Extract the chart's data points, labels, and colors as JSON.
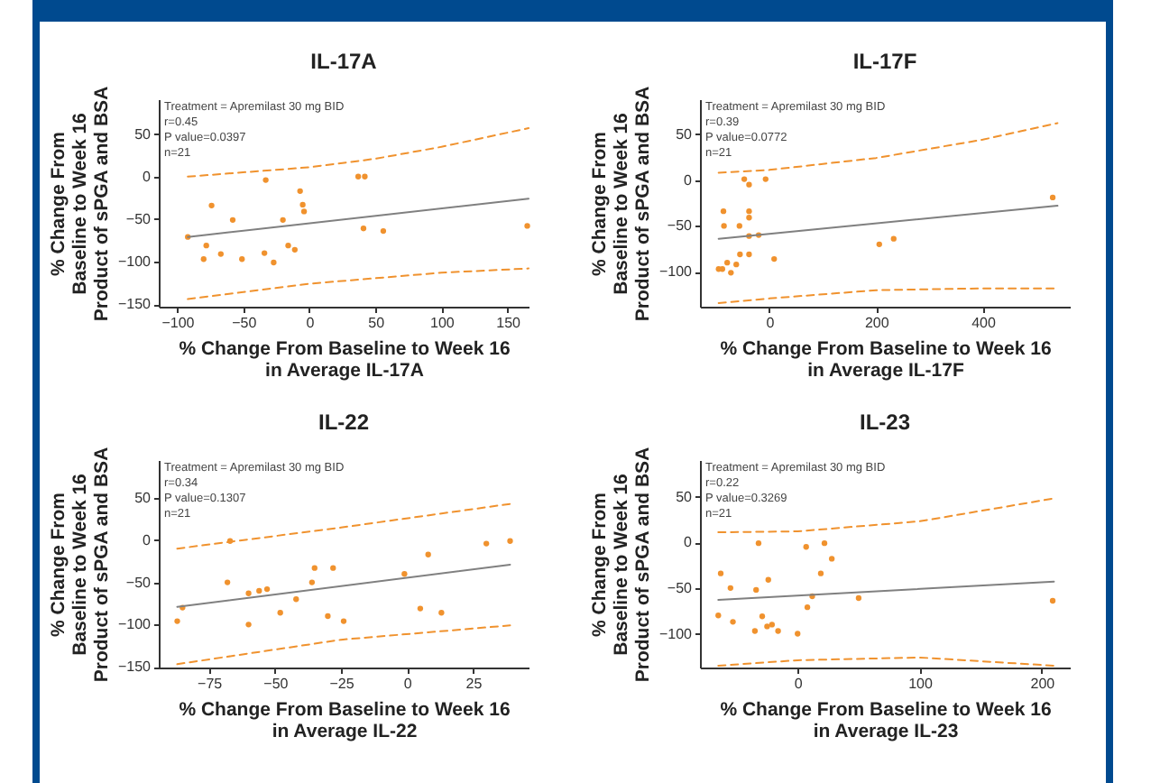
{
  "chart_data": [
    {
      "type": "scatter",
      "title": "IL-17A",
      "xlabel": "% Change From Baseline to Week 16\nin Average IL-17A",
      "ylabel": "% Change From\nBaseline to Week 16\nProduct of sPGA and BSA",
      "xlim": [
        -114,
        166
      ],
      "ylim": [
        -153,
        91
      ],
      "xticks": [
        -100,
        -50,
        0,
        50,
        100,
        150
      ],
      "yticks": [
        -150,
        -100,
        -50,
        0,
        50
      ],
      "annotations": [
        "Treatment = Apremilast 30 mg BID",
        "r=0.45",
        "P value=0.0397",
        "n=21"
      ],
      "series": [
        {
          "color": "#f0922e",
          "marker": "circle",
          "x": [
            -92,
            -74,
            -78,
            -80,
            -67,
            -58,
            -51,
            -33,
            -34,
            -27,
            -20,
            -16,
            -11,
            -7,
            -5,
            -4,
            37,
            42,
            41,
            56,
            165
          ],
          "values": [
            -71,
            -34,
            -81,
            -97,
            -91,
            -51,
            -97,
            -4,
            -90,
            -101,
            -51,
            -81,
            -86,
            -17,
            -33,
            -41,
            0,
            0,
            -61,
            -64,
            -58
          ]
        },
        {
          "type": "line",
          "color": "#808080",
          "line_style": "solid",
          "x": [
            -92,
            166
          ],
          "values": [
            -71,
            -26
          ]
        },
        {
          "type": "line",
          "color": "#f0922e",
          "line_style": "dashed",
          "x": [
            -92,
            0,
            50,
            100,
            166
          ],
          "values": [
            0,
            11,
            21,
            35,
            57
          ]
        },
        {
          "type": "line",
          "color": "#f0922e",
          "line_style": "dashed",
          "x": [
            -92,
            0,
            100,
            166
          ],
          "values": [
            -144,
            -126,
            -113,
            -108
          ]
        }
      ]
    },
    {
      "type": "scatter",
      "title": "IL-17F",
      "xlabel": "% Change From Baseline to Week 16\nin Average IL-17F",
      "ylabel": "% Change From\nBaseline to Week 16\nProduct of sPGA and BSA",
      "xlim": [
        -130,
        563
      ],
      "ylim": [
        -138,
        88
      ],
      "xticks": [
        0,
        200,
        400
      ],
      "yticks": [
        -100,
        -50,
        0,
        50
      ],
      "annotations": [
        "Treatment = Apremilast 30 mg BID",
        "r=0.39",
        "P value=0.0772",
        "n=21"
      ],
      "series": [
        {
          "color": "#f0922e",
          "marker": "circle",
          "x": [
            -95,
            -88,
            -86,
            -85,
            -79,
            -72,
            -62,
            -56,
            -55,
            -47,
            -38,
            -38,
            -38,
            -38,
            -38,
            -20,
            -7,
            9,
            206,
            233,
            531
          ],
          "values": [
            -97,
            -97,
            -34,
            -50,
            -90,
            -101,
            -92,
            -50,
            -81,
            1,
            -5,
            -34,
            -41,
            -61,
            -81,
            -60,
            1,
            -86,
            -70,
            -64,
            -19
          ]
        },
        {
          "type": "line",
          "color": "#808080",
          "line_style": "solid",
          "x": [
            -95,
            540
          ],
          "values": [
            -64,
            -28
          ]
        },
        {
          "type": "line",
          "color": "#f0922e",
          "line_style": "dashed",
          "x": [
            -95,
            0,
            200,
            400,
            540
          ],
          "values": [
            8,
            11,
            24,
            44,
            62
          ]
        },
        {
          "type": "line",
          "color": "#f0922e",
          "line_style": "dashed",
          "x": [
            -95,
            0,
            200,
            400,
            540
          ],
          "values": [
            -134,
            -129,
            -120,
            -118,
            -118
          ]
        }
      ]
    },
    {
      "type": "scatter",
      "title": "IL-22",
      "xlabel": "% Change From Baseline to Week 16\nin Average IL-22",
      "ylabel": "% Change From\nBaseline to Week 16\nProduct of sPGA and BSA",
      "xlim": [
        -94,
        46
      ],
      "ylim": [
        -151,
        95
      ],
      "xticks": [
        -75,
        -50,
        -25,
        0,
        25
      ],
      "yticks": [
        -150,
        -100,
        -50,
        0,
        50
      ],
      "annotations": [
        "Treatment = Apremilast 30 mg BID",
        "r=0.34",
        "P value=0.1307",
        "n=21"
      ],
      "series": [
        {
          "color": "#f0922e",
          "marker": "circle",
          "x": [
            -87,
            -85,
            -67,
            -68,
            -60,
            -60,
            -56,
            -53,
            -48,
            -42,
            -36,
            -35,
            -28,
            -30,
            -24,
            -1,
            5,
            8,
            13,
            30,
            39
          ],
          "values": [
            -96,
            -80,
            -1,
            -50,
            -63,
            -100,
            -60,
            -58,
            -86,
            -70,
            -50,
            -33,
            -33,
            -90,
            -96,
            -40,
            -81,
            -17,
            -86,
            -4,
            -1
          ]
        },
        {
          "type": "line",
          "color": "#808080",
          "line_style": "solid",
          "x": [
            -87,
            39
          ],
          "values": [
            -79,
            -29
          ]
        },
        {
          "type": "line",
          "color": "#f0922e",
          "line_style": "dashed",
          "x": [
            -87,
            -25,
            39
          ],
          "values": [
            -10,
            15,
            43
          ]
        },
        {
          "type": "line",
          "color": "#f0922e",
          "line_style": "dashed",
          "x": [
            -87,
            -25,
            39
          ],
          "values": [
            -147,
            -118,
            -101
          ]
        }
      ]
    },
    {
      "type": "scatter",
      "title": "IL-23",
      "xlabel": "% Change From Baseline to Week 16\nin Average IL-23",
      "ylabel": "% Change From\nBaseline to Week 16\nProduct of sPGA and BSA",
      "xlim": [
        -80,
        223
      ],
      "ylim": [
        -137,
        90
      ],
      "xticks": [
        0,
        100,
        200
      ],
      "yticks": [
        -100,
        -50,
        0,
        50
      ],
      "annotations": [
        "Treatment = Apremilast 30 mg BID",
        "r=0.22",
        "P value=0.3269",
        "n=21"
      ],
      "series": [
        {
          "color": "#f0922e",
          "marker": "circle",
          "x": [
            -65,
            -63,
            -55,
            -53,
            -35,
            -34,
            -32,
            -29,
            -25,
            -24,
            -21,
            -16,
            0,
            7,
            8,
            12,
            19,
            22,
            28,
            50,
            209
          ],
          "values": [
            -80,
            -34,
            -50,
            -87,
            -97,
            -52,
            -1,
            -81,
            -92,
            -41,
            -90,
            -97,
            -100,
            -5,
            -71,
            -59,
            -34,
            -1,
            -18,
            -61,
            -64
          ]
        },
        {
          "type": "line",
          "color": "#808080",
          "line_style": "solid",
          "x": [
            -65,
            210
          ],
          "values": [
            -63,
            -43
          ]
        },
        {
          "type": "line",
          "color": "#f0922e",
          "line_style": "dashed",
          "x": [
            -65,
            0,
            100,
            210
          ],
          "values": [
            11,
            12,
            23,
            48
          ]
        },
        {
          "type": "line",
          "color": "#f0922e",
          "line_style": "dashed",
          "x": [
            -65,
            0,
            100,
            210
          ],
          "values": [
            -135,
            -129,
            -126,
            -135
          ]
        }
      ]
    }
  ]
}
